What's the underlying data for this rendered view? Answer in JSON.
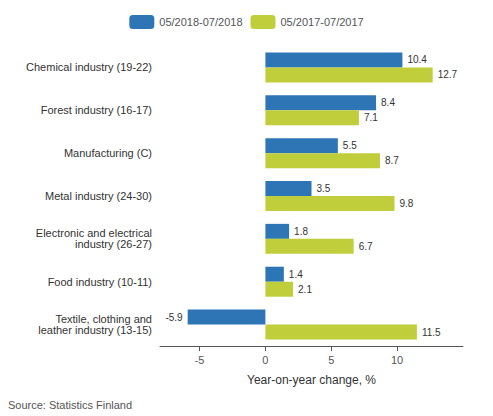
{
  "chart_data": {
    "type": "bar",
    "orientation": "horizontal",
    "categories": [
      "Chemical industry (19-22)",
      "Forest industry (16-17)",
      "Manufacturing (C)",
      "Metal industry (24-30)",
      "Electronic and electrical\nindustry (26-27)",
      "Food industry (10-11)",
      "Textile, clothing and\nleather industry (13-15)"
    ],
    "series": [
      {
        "name": "05/2018-07/2018",
        "color": "#2E75B6",
        "values": [
          10.4,
          8.4,
          5.5,
          3.5,
          1.8,
          1.4,
          -5.9
        ]
      },
      {
        "name": "05/2017-07/2017",
        "color": "#BFCE3A",
        "values": [
          12.7,
          7.1,
          8.7,
          9.8,
          6.7,
          2.1,
          11.5
        ]
      }
    ],
    "xlabel": "Year-on-year change, %",
    "xlim": [
      -8,
      15
    ],
    "xticks": [
      -5,
      0,
      5,
      10
    ],
    "data_labels": true,
    "grid": false,
    "legend": "top",
    "annotations": [
      "Source: Statistics Finland"
    ]
  }
}
